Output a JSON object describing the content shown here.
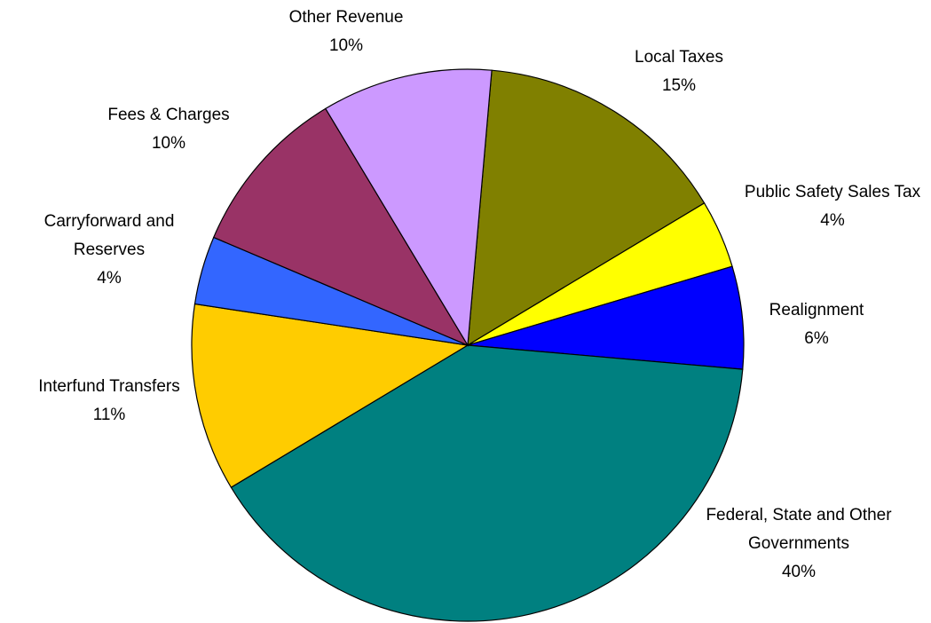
{
  "chart_data": {
    "type": "pie",
    "categories": [
      "Local Taxes",
      "Public Safety Sales Tax",
      "Realignment",
      "Federal, State and Other Governments",
      "Interfund Transfers",
      "Carryforward and Reserves",
      "Fees & Charges",
      "Other Revenue"
    ],
    "values": [
      15,
      4,
      6,
      40,
      11,
      4,
      10,
      10
    ],
    "value_labels": [
      "15%",
      "4%",
      "6%",
      "40%",
      "11%",
      "4%",
      "10%",
      "10%"
    ],
    "colors": [
      "#808000",
      "#ffff00",
      "#0000ff",
      "#008080",
      "#ffcc00",
      "#3366ff",
      "#993366",
      "#cc99ff"
    ]
  }
}
